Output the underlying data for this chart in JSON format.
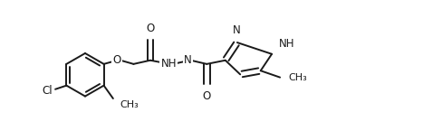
{
  "line_color": "#1a1a1a",
  "bg_color": "#ffffff",
  "line_width": 1.4,
  "font_size": 8.5,
  "figsize": [
    4.67,
    1.45
  ],
  "dpi": 100,
  "xlim": [
    0.0,
    9.2
  ],
  "ylim": [
    -1.5,
    2.0
  ]
}
